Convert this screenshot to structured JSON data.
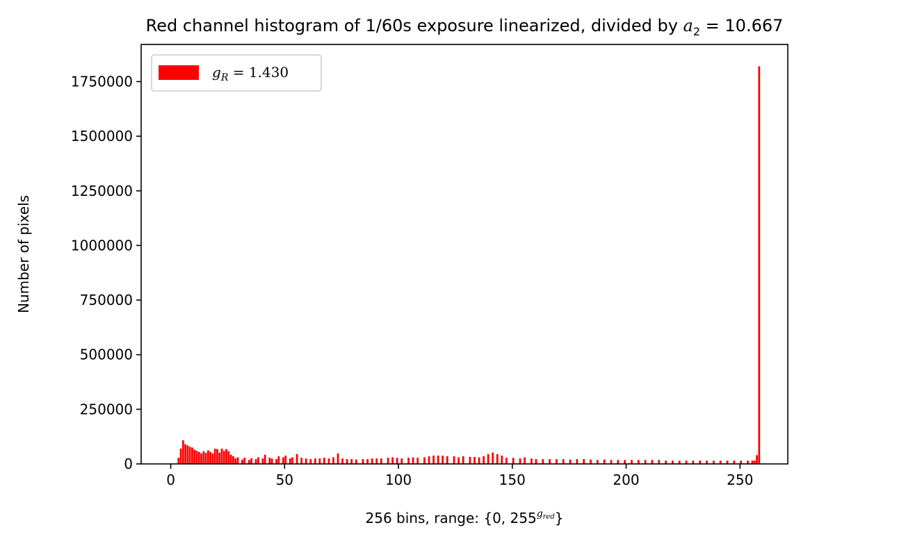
{
  "chart_data": {
    "type": "bar",
    "title": "Red channel histogram of 1/60s exposure linearized, divided by a2 = 10.667",
    "title_parts": {
      "lead": "Red channel histogram of 1/60s exposure linearized, divided by ",
      "var": "a",
      "sub": "2",
      "tail": " = 10.667"
    },
    "xlabel": "256 bins, range: {0, 255^g_red}",
    "xlabel_parts": {
      "lead": "256 bins, range: {0, 255",
      "sup": "g",
      "sup_sub": "red",
      "tail": "}"
    },
    "ylabel": "Number of pixels",
    "xlim": [
      -13,
      271
    ],
    "ylim": [
      0,
      1920000
    ],
    "x_ticks": [
      0,
      50,
      100,
      150,
      200,
      250
    ],
    "x_tick_labels": [
      "0",
      "50",
      "100",
      "150",
      "200",
      "250"
    ],
    "y_ticks": [
      0,
      250000,
      500000,
      750000,
      1000000,
      1250000,
      1500000,
      1750000
    ],
    "y_tick_labels": [
      "0",
      "250000",
      "500000",
      "750000",
      "1000000",
      "1250000",
      "1500000",
      "1750000"
    ],
    "bar_color": "#ff0000",
    "grid": false,
    "legend_position": "upper-left",
    "series": [
      {
        "name": "g_R = 1.430",
        "legend_parts": {
          "var": "g",
          "sub": "R",
          "tail": " = 1.430"
        },
        "bin_width": 1.0,
        "bins_x": [
          3.0,
          4.0,
          5.0,
          6.0,
          7.0,
          8.0,
          9.0,
          10.0,
          11.0,
          12.0,
          13.0,
          14.0,
          15.0,
          16.0,
          17.0,
          18.0,
          19.0,
          20.0,
          21.0,
          22.0,
          23.0,
          24.0,
          25.0,
          26.0,
          27.0,
          28.0,
          29.0,
          31.0,
          32.0,
          34.0,
          35.0,
          37.0,
          38.0,
          40.0,
          41.0,
          43.0,
          44.0,
          46.0,
          47.0,
          49.0,
          50.0,
          52.0,
          53.0,
          55.0,
          57.0,
          59.0,
          61.0,
          63.0,
          65.0,
          67.0,
          69.0,
          71.0,
          73.0,
          75.0,
          77.0,
          79.0,
          81.0,
          84.0,
          86.0,
          88.0,
          90.0,
          92.0,
          95.0,
          97.0,
          99.0,
          101.0,
          104.0,
          106.0,
          108.0,
          111.0,
          113.0,
          115.0,
          117.0,
          119.0,
          121.0,
          124.0,
          126.0,
          128.0,
          131.0,
          133.0,
          135.0,
          137.0,
          139.0,
          141.0,
          143.0,
          145.0,
          147.0,
          150.0,
          153.0,
          155.0,
          158.0,
          160.0,
          163.0,
          166.0,
          169.0,
          172.0,
          175.0,
          178.0,
          181.0,
          184.0,
          187.0,
          190.0,
          193.0,
          196.0,
          199.0,
          202.0,
          205.0,
          208.0,
          211.0,
          214.0,
          217.0,
          220.0,
          223.0,
          226.0,
          229.0,
          232.0,
          235.0,
          238.0,
          241.0,
          244.0,
          247.0,
          250.0,
          253.0,
          255.0,
          256.0,
          257.0,
          258.0
        ],
        "counts": [
          28000,
          70000,
          108000,
          90000,
          85000,
          78000,
          75000,
          65000,
          60000,
          55000,
          48000,
          58000,
          50000,
          62000,
          55000,
          48000,
          70000,
          68000,
          52000,
          70000,
          60000,
          68000,
          58000,
          42000,
          35000,
          25000,
          30000,
          20000,
          28000,
          18000,
          26000,
          22000,
          30000,
          25000,
          42000,
          28000,
          25000,
          22000,
          35000,
          30000,
          38000,
          25000,
          30000,
          45000,
          28000,
          25000,
          22000,
          25000,
          25000,
          28000,
          25000,
          30000,
          48000,
          25000,
          22000,
          22000,
          20000,
          22000,
          22000,
          25000,
          25000,
          25000,
          28000,
          30000,
          28000,
          25000,
          28000,
          30000,
          28000,
          30000,
          35000,
          38000,
          38000,
          38000,
          35000,
          35000,
          30000,
          35000,
          32000,
          32000,
          30000,
          35000,
          45000,
          52000,
          45000,
          38000,
          28000,
          28000,
          25000,
          30000,
          25000,
          22000,
          22000,
          22000,
          22000,
          22000,
          20000,
          22000,
          22000,
          20000,
          18000,
          20000,
          18000,
          18000,
          18000,
          18000,
          18000,
          18000,
          18000,
          18000,
          15000,
          15000,
          15000,
          15000,
          15000,
          15000,
          15000,
          15000,
          15000,
          15000,
          15000,
          15000,
          15000,
          15000,
          15000,
          40000,
          1820000
        ]
      }
    ]
  }
}
